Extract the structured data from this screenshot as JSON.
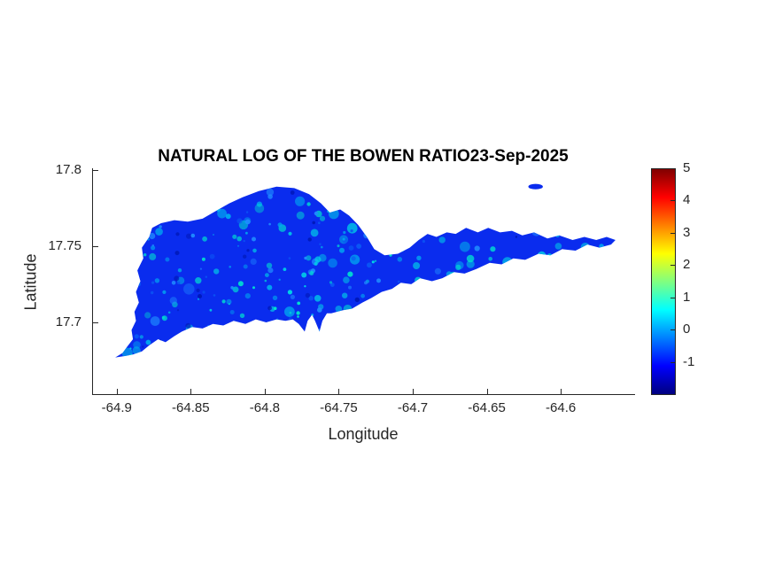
{
  "window": {
    "background": "#ffffff"
  },
  "chart_data": {
    "type": "heatmap",
    "title": "NATURAL LOG OF THE BOWEN RATIO23-Sep-2025",
    "xlabel": "Longitude",
    "ylabel": "Latitude",
    "xlim": [
      -64.916,
      -64.551
    ],
    "ylim": [
      17.653,
      17.801
    ],
    "x_ticks": [
      -64.9,
      -64.85,
      -64.8,
      -64.75,
      -64.7,
      -64.65,
      -64.6
    ],
    "x_tick_labels": [
      "-64.9",
      "-64.85",
      "-64.8",
      "-64.75",
      "-64.7",
      "-64.65",
      "-64.6"
    ],
    "y_ticks": [
      17.8,
      17.75,
      17.7
    ],
    "y_tick_labels": [
      "17.8",
      "17.75",
      "17.7"
    ],
    "grid": false,
    "colorbar": {
      "ticks": [
        5,
        4,
        3,
        2,
        1,
        0,
        -1
      ],
      "range": [
        -2,
        5
      ],
      "colormap": "jet",
      "stops": [
        {
          "color": "#800000",
          "pos": 0
        },
        {
          "color": "#ff0000",
          "pos": 12.5
        },
        {
          "color": "#ffff00",
          "pos": 37.5
        },
        {
          "color": "#00ffff",
          "pos": 62.5
        },
        {
          "color": "#0000ff",
          "pos": 87.5
        },
        {
          "color": "#000080",
          "pos": 100
        }
      ]
    },
    "values_note": "Island raster values are mostly between -1 and 0 (deep blue) with scattered patches between 0 and 1 (cyan / light blue)",
    "base_value_color": "#0a2cee",
    "speckle_colors": [
      "#00aaf0",
      "#00d2e6",
      "#1f8cff",
      "#00e1cf",
      "#0a57f5",
      "#0018b8"
    ],
    "island_outline": [
      [
        -64.901,
        17.677
      ],
      [
        -64.896,
        17.68
      ],
      [
        -64.893,
        17.684
      ],
      [
        -64.889,
        17.689
      ],
      [
        -64.89,
        17.695
      ],
      [
        -64.887,
        17.701
      ],
      [
        -64.888,
        17.707
      ],
      [
        -64.885,
        17.713
      ],
      [
        -64.887,
        17.72
      ],
      [
        -64.884,
        17.727
      ],
      [
        -64.886,
        17.734
      ],
      [
        -64.882,
        17.742
      ],
      [
        -64.883,
        17.749
      ],
      [
        -64.878,
        17.756
      ],
      [
        -64.876,
        17.762
      ],
      [
        -64.87,
        17.765
      ],
      [
        -64.861,
        17.767
      ],
      [
        -64.852,
        17.766
      ],
      [
        -64.842,
        17.768
      ],
      [
        -64.833,
        17.773
      ],
      [
        -64.824,
        17.778
      ],
      [
        -64.815,
        17.782
      ],
      [
        -64.804,
        17.786
      ],
      [
        -64.792,
        17.789
      ],
      [
        -64.78,
        17.788
      ],
      [
        -64.77,
        17.784
      ],
      [
        -64.762,
        17.778
      ],
      [
        -64.756,
        17.772
      ],
      [
        -64.749,
        17.774
      ],
      [
        -64.743,
        17.77
      ],
      [
        -64.737,
        17.764
      ],
      [
        -64.731,
        17.756
      ],
      [
        -64.726,
        17.748
      ],
      [
        -64.719,
        17.744
      ],
      [
        -64.71,
        17.745
      ],
      [
        -64.702,
        17.749
      ],
      [
        -64.696,
        17.754
      ],
      [
        -64.69,
        17.758
      ],
      [
        -64.684,
        17.756
      ],
      [
        -64.677,
        17.759
      ],
      [
        -64.671,
        17.758
      ],
      [
        -64.664,
        17.762
      ],
      [
        -64.656,
        17.759
      ],
      [
        -64.649,
        17.762
      ],
      [
        -64.641,
        17.759
      ],
      [
        -64.633,
        17.76
      ],
      [
        -64.626,
        17.757
      ],
      [
        -64.618,
        17.759
      ],
      [
        -64.609,
        17.755
      ],
      [
        -64.601,
        17.757
      ],
      [
        -64.592,
        17.754
      ],
      [
        -64.584,
        17.756
      ],
      [
        -64.576,
        17.754
      ],
      [
        -64.569,
        17.756
      ],
      [
        -64.563,
        17.754
      ],
      [
        -64.566,
        17.751
      ],
      [
        -64.574,
        17.749
      ],
      [
        -64.582,
        17.751
      ],
      [
        -64.59,
        17.747
      ],
      [
        -64.599,
        17.748
      ],
      [
        -64.607,
        17.744
      ],
      [
        -64.615,
        17.745
      ],
      [
        -64.624,
        17.741
      ],
      [
        -64.632,
        17.742
      ],
      [
        -64.64,
        17.738
      ],
      [
        -64.648,
        17.739
      ],
      [
        -64.657,
        17.735
      ],
      [
        -64.665,
        17.732
      ],
      [
        -64.672,
        17.733
      ],
      [
        -64.68,
        17.729
      ],
      [
        -64.687,
        17.727
      ],
      [
        -64.695,
        17.729
      ],
      [
        -64.701,
        17.725
      ],
      [
        -64.708,
        17.726
      ],
      [
        -64.714,
        17.722
      ],
      [
        -64.721,
        17.72
      ],
      [
        -64.728,
        17.716
      ],
      [
        -64.734,
        17.713
      ],
      [
        -64.741,
        17.709
      ],
      [
        -64.747,
        17.708
      ],
      [
        -64.755,
        17.706
      ],
      [
        -64.758,
        17.706
      ],
      [
        -64.761,
        17.701
      ],
      [
        -64.763,
        17.694
      ],
      [
        -64.766,
        17.701
      ],
      [
        -64.768,
        17.705
      ],
      [
        -64.771,
        17.701
      ],
      [
        -64.773,
        17.694
      ],
      [
        -64.777,
        17.699
      ],
      [
        -64.781,
        17.702
      ],
      [
        -64.786,
        17.701
      ],
      [
        -64.792,
        17.702
      ],
      [
        -64.799,
        17.7
      ],
      [
        -64.806,
        17.702
      ],
      [
        -64.813,
        17.699
      ],
      [
        -64.821,
        17.701
      ],
      [
        -64.828,
        17.698
      ],
      [
        -64.835,
        17.699
      ],
      [
        -64.842,
        17.696
      ],
      [
        -64.849,
        17.697
      ],
      [
        -64.856,
        17.694
      ],
      [
        -64.861,
        17.691
      ],
      [
        -64.867,
        17.687
      ],
      [
        -64.872,
        17.689
      ],
      [
        -64.878,
        17.685
      ],
      [
        -64.883,
        17.681
      ],
      [
        -64.889,
        17.679
      ],
      [
        -64.894,
        17.678
      ]
    ],
    "islets": [
      {
        "center": [
          -64.617,
          17.789
        ],
        "rx": 0.0049,
        "ry": 0.0018
      }
    ]
  }
}
